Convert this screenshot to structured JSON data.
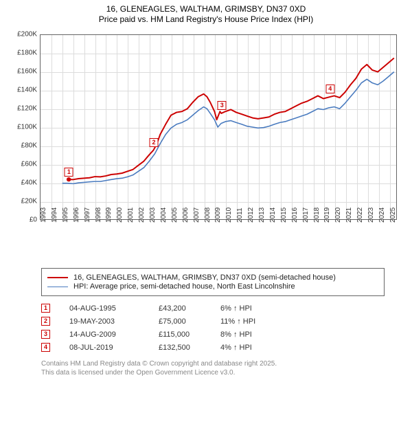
{
  "title": {
    "line1": "16, GLENEAGLES, WALTHAM, GRIMSBY, DN37 0XD",
    "line2": "Price paid vs. HM Land Registry's House Price Index (HPI)"
  },
  "chart": {
    "type": "line",
    "plot_bg": "#ffffff",
    "grid_color": "#dcdcdc",
    "border_color": "#646464",
    "ylim": [
      0,
      200000
    ],
    "ytick_step": 20000,
    "yticks": [
      {
        "v": 0,
        "label": "£0"
      },
      {
        "v": 20000,
        "label": "£20K"
      },
      {
        "v": 40000,
        "label": "£40K"
      },
      {
        "v": 60000,
        "label": "£60K"
      },
      {
        "v": 80000,
        "label": "£80K"
      },
      {
        "v": 100000,
        "label": "£100K"
      },
      {
        "v": 120000,
        "label": "£120K"
      },
      {
        "v": 140000,
        "label": "£140K"
      },
      {
        "v": 160000,
        "label": "£160K"
      },
      {
        "v": 180000,
        "label": "£180K"
      },
      {
        "v": 200000,
        "label": "£200K"
      }
    ],
    "xlim": [
      1993,
      2025.7
    ],
    "xticks": [
      1993,
      1994,
      1995,
      1996,
      1997,
      1998,
      1999,
      2000,
      2001,
      2002,
      2003,
      2004,
      2005,
      2006,
      2007,
      2008,
      2009,
      2010,
      2011,
      2012,
      2013,
      2014,
      2015,
      2016,
      2017,
      2018,
      2019,
      2020,
      2021,
      2022,
      2023,
      2024,
      2025
    ],
    "series": [
      {
        "name": "price_paid",
        "label": "16, GLENEAGLES, WALTHAM, GRIMSBY, DN37 0XD (semi-detached house)",
        "color": "#cc0000",
        "width": 2,
        "points": [
          [
            1995.6,
            43200
          ],
          [
            1996,
            43000
          ],
          [
            1996.5,
            44000
          ],
          [
            1997,
            44500
          ],
          [
            1997.5,
            45000
          ],
          [
            1998,
            46200
          ],
          [
            1998.5,
            46000
          ],
          [
            1999,
            47000
          ],
          [
            1999.5,
            48500
          ],
          [
            2000,
            49000
          ],
          [
            2000.5,
            50000
          ],
          [
            2001,
            52000
          ],
          [
            2001.5,
            54000
          ],
          [
            2002,
            58500
          ],
          [
            2002.5,
            63000
          ],
          [
            2003,
            70000
          ],
          [
            2003.38,
            75000
          ],
          [
            2003.7,
            82000
          ],
          [
            2004,
            92000
          ],
          [
            2004.5,
            103000
          ],
          [
            2005,
            113000
          ],
          [
            2005.5,
            116000
          ],
          [
            2006,
            117000
          ],
          [
            2006.5,
            120000
          ],
          [
            2007,
            127000
          ],
          [
            2007.5,
            133000
          ],
          [
            2008,
            136000
          ],
          [
            2008.3,
            133000
          ],
          [
            2008.6,
            127000
          ],
          [
            2009,
            117000
          ],
          [
            2009.2,
            108000
          ],
          [
            2009.5,
            117000
          ],
          [
            2009.62,
            115000
          ],
          [
            2010,
            117000
          ],
          [
            2010.5,
            119000
          ],
          [
            2011,
            116000
          ],
          [
            2011.5,
            114000
          ],
          [
            2012,
            112000
          ],
          [
            2012.5,
            110000
          ],
          [
            2013,
            109000
          ],
          [
            2013.5,
            110000
          ],
          [
            2014,
            111000
          ],
          [
            2014.5,
            114000
          ],
          [
            2015,
            116000
          ],
          [
            2015.5,
            117000
          ],
          [
            2016,
            120000
          ],
          [
            2016.5,
            123000
          ],
          [
            2017,
            126000
          ],
          [
            2017.5,
            128000
          ],
          [
            2018,
            131000
          ],
          [
            2018.5,
            134000
          ],
          [
            2019,
            131000
          ],
          [
            2019.5,
            132500
          ],
          [
            2020,
            134000
          ],
          [
            2020.5,
            132000
          ],
          [
            2021,
            138000
          ],
          [
            2021.5,
            146000
          ],
          [
            2022,
            153000
          ],
          [
            2022.5,
            163000
          ],
          [
            2023,
            168000
          ],
          [
            2023.5,
            162000
          ],
          [
            2024,
            160000
          ],
          [
            2024.5,
            165000
          ],
          [
            2025,
            170000
          ],
          [
            2025.5,
            175000
          ]
        ]
      },
      {
        "name": "hpi",
        "label": "HPI: Average price, semi-detached house, North East Lincolnshire",
        "color": "#4a7bbf",
        "width": 1.6,
        "points": [
          [
            1995,
            39000
          ],
          [
            1995.5,
            39000
          ],
          [
            1996,
            38500
          ],
          [
            1996.5,
            39500
          ],
          [
            1997,
            40000
          ],
          [
            1997.5,
            40500
          ],
          [
            1998,
            41000
          ],
          [
            1998.5,
            41000
          ],
          [
            1999,
            42000
          ],
          [
            1999.5,
            43000
          ],
          [
            2000,
            44000
          ],
          [
            2000.5,
            44500
          ],
          [
            2001,
            46000
          ],
          [
            2001.5,
            48000
          ],
          [
            2002,
            52000
          ],
          [
            2002.5,
            56000
          ],
          [
            2003,
            63000
          ],
          [
            2003.5,
            71000
          ],
          [
            2004,
            82000
          ],
          [
            2004.5,
            92000
          ],
          [
            2005,
            99000
          ],
          [
            2005.5,
            103000
          ],
          [
            2006,
            105000
          ],
          [
            2006.5,
            108000
          ],
          [
            2007,
            113000
          ],
          [
            2007.5,
            118000
          ],
          [
            2008,
            122000
          ],
          [
            2008.3,
            120000
          ],
          [
            2008.6,
            115000
          ],
          [
            2009,
            108000
          ],
          [
            2009.3,
            100000
          ],
          [
            2009.6,
            104000
          ],
          [
            2010,
            106000
          ],
          [
            2010.5,
            107000
          ],
          [
            2011,
            105000
          ],
          [
            2011.5,
            103000
          ],
          [
            2012,
            101000
          ],
          [
            2012.5,
            100000
          ],
          [
            2013,
            99000
          ],
          [
            2013.5,
            99500
          ],
          [
            2014,
            101000
          ],
          [
            2014.5,
            103000
          ],
          [
            2015,
            105000
          ],
          [
            2015.5,
            106000
          ],
          [
            2016,
            108000
          ],
          [
            2016.5,
            110000
          ],
          [
            2017,
            112000
          ],
          [
            2017.5,
            114000
          ],
          [
            2018,
            117000
          ],
          [
            2018.5,
            120000
          ],
          [
            2019,
            119000
          ],
          [
            2019.5,
            121000
          ],
          [
            2020,
            122000
          ],
          [
            2020.5,
            120000
          ],
          [
            2021,
            126000
          ],
          [
            2021.5,
            133000
          ],
          [
            2022,
            140000
          ],
          [
            2022.5,
            148000
          ],
          [
            2023,
            152000
          ],
          [
            2023.5,
            148000
          ],
          [
            2024,
            146000
          ],
          [
            2024.5,
            150000
          ],
          [
            2025,
            155000
          ],
          [
            2025.5,
            160000
          ]
        ]
      }
    ],
    "markers": [
      {
        "n": "1",
        "x": 1995.6,
        "y": 43200
      },
      {
        "n": "2",
        "x": 2003.38,
        "y": 75000
      },
      {
        "n": "3",
        "x": 2009.62,
        "y": 115000
      },
      {
        "n": "4",
        "x": 2019.52,
        "y": 132500
      }
    ]
  },
  "legend": {
    "items": [
      {
        "color": "#cc0000",
        "width": 2,
        "label": "16, GLENEAGLES, WALTHAM, GRIMSBY, DN37 0XD (semi-detached house)"
      },
      {
        "color": "#4a7bbf",
        "width": 1.6,
        "label": "HPI: Average price, semi-detached house, North East Lincolnshire"
      }
    ]
  },
  "transactions": [
    {
      "n": "1",
      "date": "04-AUG-1995",
      "price": "£43,200",
      "diff": "6% ↑ HPI"
    },
    {
      "n": "2",
      "date": "19-MAY-2003",
      "price": "£75,000",
      "diff": "11% ↑ HPI"
    },
    {
      "n": "3",
      "date": "14-AUG-2009",
      "price": "£115,000",
      "diff": "8% ↑ HPI"
    },
    {
      "n": "4",
      "date": "08-JUL-2019",
      "price": "£132,500",
      "diff": "4% ↑ HPI"
    }
  ],
  "footer": {
    "line1": "Contains HM Land Registry data © Crown copyright and database right 2025.",
    "line2": "This data is licensed under the Open Government Licence v3.0."
  }
}
